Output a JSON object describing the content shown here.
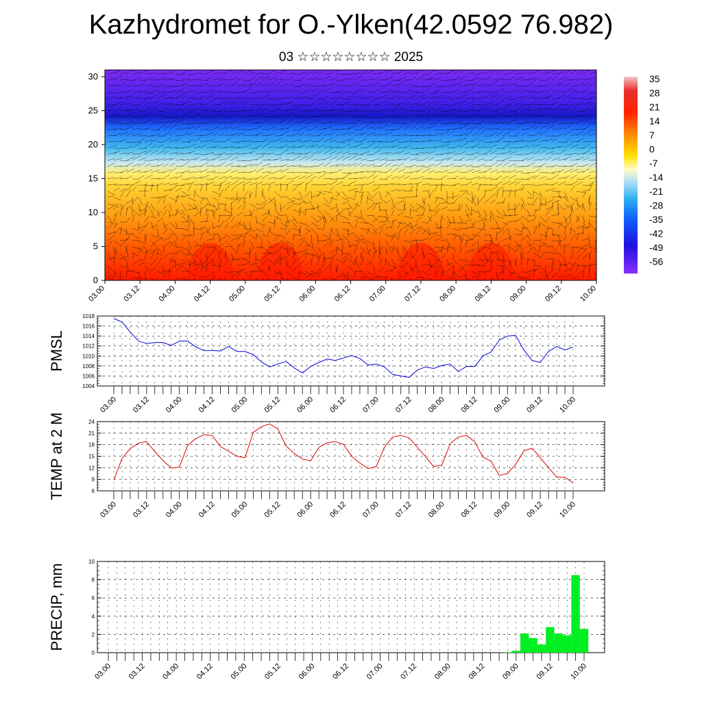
{
  "title": "Kazhydromet for O.-Ylken(42.0592 76.982)",
  "subtitle": "03 ☆☆☆☆☆☆☆☆ 2025",
  "colors": {
    "pmsl_line": "#0000dd",
    "temp_line": "#dd0000",
    "precip_bar": "#00ee22",
    "grid": "#000000"
  },
  "x_tick_labels": [
    "03.00",
    "03.12",
    "04.00",
    "04.12",
    "05.00",
    "05.12",
    "06.00",
    "06.12",
    "07.00",
    "07.12",
    "08.00",
    "08.12",
    "09.00",
    "09.12",
    "10.00"
  ],
  "chart_data": [
    {
      "type": "heatmap",
      "title": "",
      "ylabel": "",
      "ylim": [
        0,
        31
      ],
      "y_ticks": [
        0,
        5,
        10,
        15,
        20,
        25,
        30
      ],
      "x_tick_labels": [
        "03.00",
        "03.12",
        "04.00",
        "04.12",
        "05.00",
        "05.12",
        "06.00",
        "06.12",
        "07.00",
        "07.12",
        "08.00",
        "08.12",
        "09.00",
        "09.12",
        "10.00"
      ],
      "colorbar_labels": [
        "35",
        "28",
        "21",
        "14",
        "7",
        "0",
        "-7",
        "-14",
        "-21",
        "-28",
        "-35",
        "-42",
        "-49",
        "-56"
      ],
      "colorbar_range": [
        -60,
        38
      ],
      "overlay": "wind barbs",
      "surface_warm_maxima_days": [
        "04.12",
        "05.12",
        "07.12",
        "08.12"
      ]
    },
    {
      "type": "line",
      "ylabel": "PMSL",
      "ylim": [
        1004,
        1018
      ],
      "y_ticks": [
        1004,
        1006,
        1008,
        1010,
        1012,
        1014,
        1016,
        1018
      ],
      "x_tick_labels": [
        "03.00",
        "03.12",
        "04.00",
        "04.12",
        "05.00",
        "05.12",
        "06.00",
        "06.12",
        "07.00",
        "07.12",
        "08.00",
        "08.12",
        "09.00",
        "09.12",
        "10.00"
      ],
      "step_hours": 3,
      "values": [
        1017.5,
        1016.8,
        1014.8,
        1013.0,
        1012.5,
        1012.7,
        1012.7,
        1012.1,
        1013.0,
        1013.0,
        1011.8,
        1011.1,
        1011.1,
        1011.0,
        1011.9,
        1010.9,
        1010.9,
        1010.3,
        1008.8,
        1007.8,
        1008.4,
        1008.9,
        1007.6,
        1006.6,
        1007.9,
        1008.7,
        1009.4,
        1009.1,
        1009.6,
        1010.1,
        1009.5,
        1008.2,
        1008.4,
        1007.8,
        1006.3,
        1006.0,
        1005.7,
        1007.2,
        1007.8,
        1007.5,
        1008.1,
        1008.4,
        1006.9,
        1007.9,
        1007.9,
        1010.0,
        1010.8,
        1013.2,
        1014.0,
        1014.1,
        1011.2,
        1009.1,
        1008.7,
        1010.9,
        1011.9,
        1011.2,
        1011.8
      ]
    },
    {
      "type": "line",
      "ylabel": "TEMP at 2 M",
      "ylim": [
        6,
        24
      ],
      "y_ticks": [
        6,
        9,
        12,
        15,
        18,
        21,
        24
      ],
      "x_tick_labels": [
        "03.00",
        "03.12",
        "04.00",
        "04.12",
        "05.00",
        "05.12",
        "06.00",
        "06.12",
        "07.00",
        "07.12",
        "08.00",
        "08.12",
        "09.00",
        "09.12",
        "10.00"
      ],
      "step_hours": 3,
      "values": [
        8.8,
        14.4,
        17.0,
        18.4,
        18.8,
        16.2,
        13.9,
        11.9,
        12.2,
        17.8,
        19.6,
        20.6,
        20.4,
        17.5,
        16.3,
        15.0,
        14.6,
        21.2,
        22.7,
        23.4,
        22.1,
        17.7,
        15.7,
        14.3,
        13.8,
        17.3,
        18.5,
        18.8,
        18.1,
        15.0,
        13.2,
        11.8,
        12.3,
        17.4,
        20.0,
        20.4,
        19.8,
        17.3,
        14.9,
        12.3,
        12.7,
        18.2,
        20.0,
        20.4,
        18.8,
        14.8,
        13.7,
        10.0,
        10.5,
        12.9,
        16.4,
        17.1,
        14.6,
        12.0,
        9.6,
        9.5,
        8.1
      ]
    },
    {
      "type": "bar",
      "ylabel": "PRECIP, mm",
      "ylim": [
        0,
        10
      ],
      "y_ticks": [
        0,
        2,
        4,
        6,
        8,
        10
      ],
      "x_tick_labels": [
        "03.00",
        "03.12",
        "04.00",
        "04.12",
        "05.00",
        "05.12",
        "06.00",
        "06.12",
        "07.00",
        "07.12",
        "08.00",
        "08.12",
        "09.00",
        "09.12",
        "10.00"
      ],
      "step_hours": 3,
      "values": [
        0,
        0,
        0,
        0,
        0,
        0,
        0,
        0,
        0,
        0,
        0,
        0,
        0,
        0,
        0,
        0,
        0,
        0,
        0,
        0,
        0,
        0,
        0,
        0,
        0,
        0,
        0,
        0,
        0,
        0,
        0,
        0,
        0,
        0,
        0,
        0,
        0,
        0,
        0,
        0,
        0,
        0,
        0,
        0,
        0,
        0,
        0,
        0.05,
        0.2,
        2.1,
        1.6,
        0.9,
        2.8,
        2.1,
        1.9,
        8.5,
        2.6
      ]
    }
  ]
}
